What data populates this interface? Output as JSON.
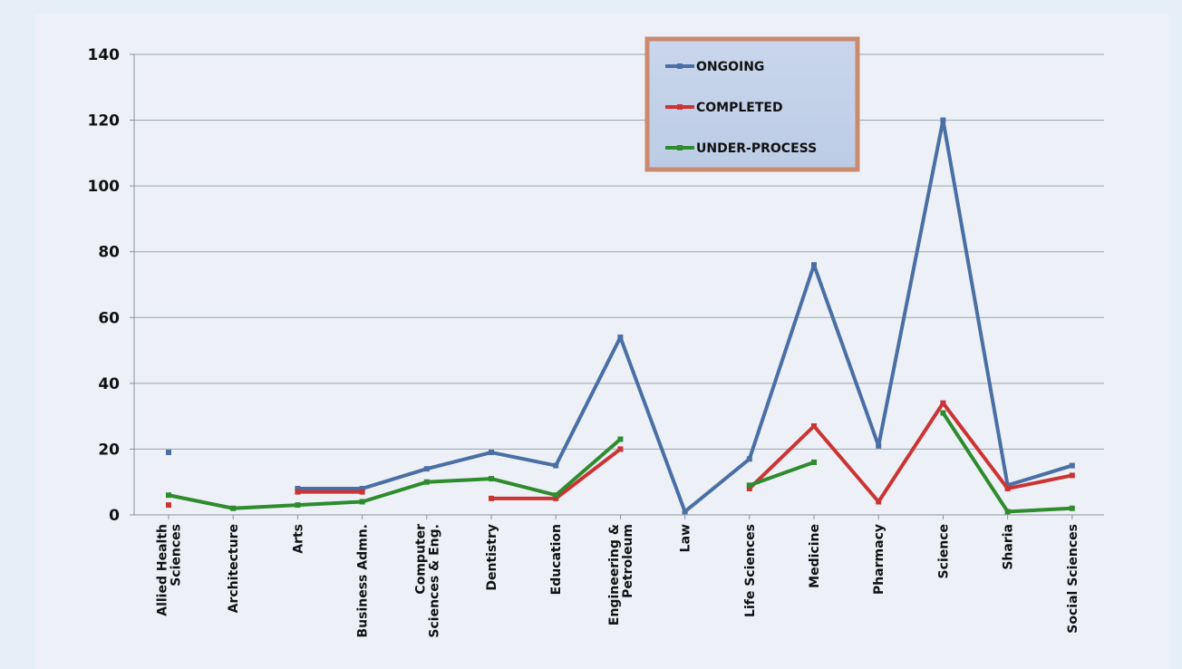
{
  "chart_data": {
    "type": "line",
    "title": "",
    "xlabel": "",
    "ylabel": "",
    "ylim": [
      0,
      140
    ],
    "yticks": [
      0,
      20,
      40,
      60,
      80,
      100,
      120,
      140
    ],
    "grid": "horizontal",
    "legend_position": "top-center",
    "categories": [
      [
        "Allied Health",
        "Sciences"
      ],
      [
        "Architecture"
      ],
      [
        "Arts"
      ],
      [
        "Business Admn."
      ],
      [
        "Computer",
        "Sciences & Eng."
      ],
      [
        "Dentistry"
      ],
      [
        "Education"
      ],
      [
        "Engineering &",
        "Petroleum"
      ],
      [
        "Law"
      ],
      [
        "Life Sciences"
      ],
      [
        "Medicine"
      ],
      [
        "Pharmacy"
      ],
      [
        "Science"
      ],
      [
        "Sharia"
      ],
      [
        "Social Sciences"
      ]
    ],
    "series": [
      {
        "name": "ONGOING",
        "color": "#4a6fa5",
        "values": [
          19,
          null,
          8,
          8,
          14,
          19,
          15,
          54,
          1,
          17,
          76,
          21,
          120,
          9,
          15
        ]
      },
      {
        "name": "COMPLETED",
        "color": "#cc3333",
        "values": [
          3,
          null,
          7,
          7,
          null,
          5,
          5,
          20,
          null,
          8,
          27,
          4,
          34,
          8,
          12
        ]
      },
      {
        "name": "UNDER-PROCESS",
        "color": "#2e8b2e",
        "values": [
          6,
          2,
          3,
          4,
          10,
          11,
          6,
          23,
          null,
          9,
          16,
          null,
          31,
          1,
          2
        ]
      }
    ]
  }
}
